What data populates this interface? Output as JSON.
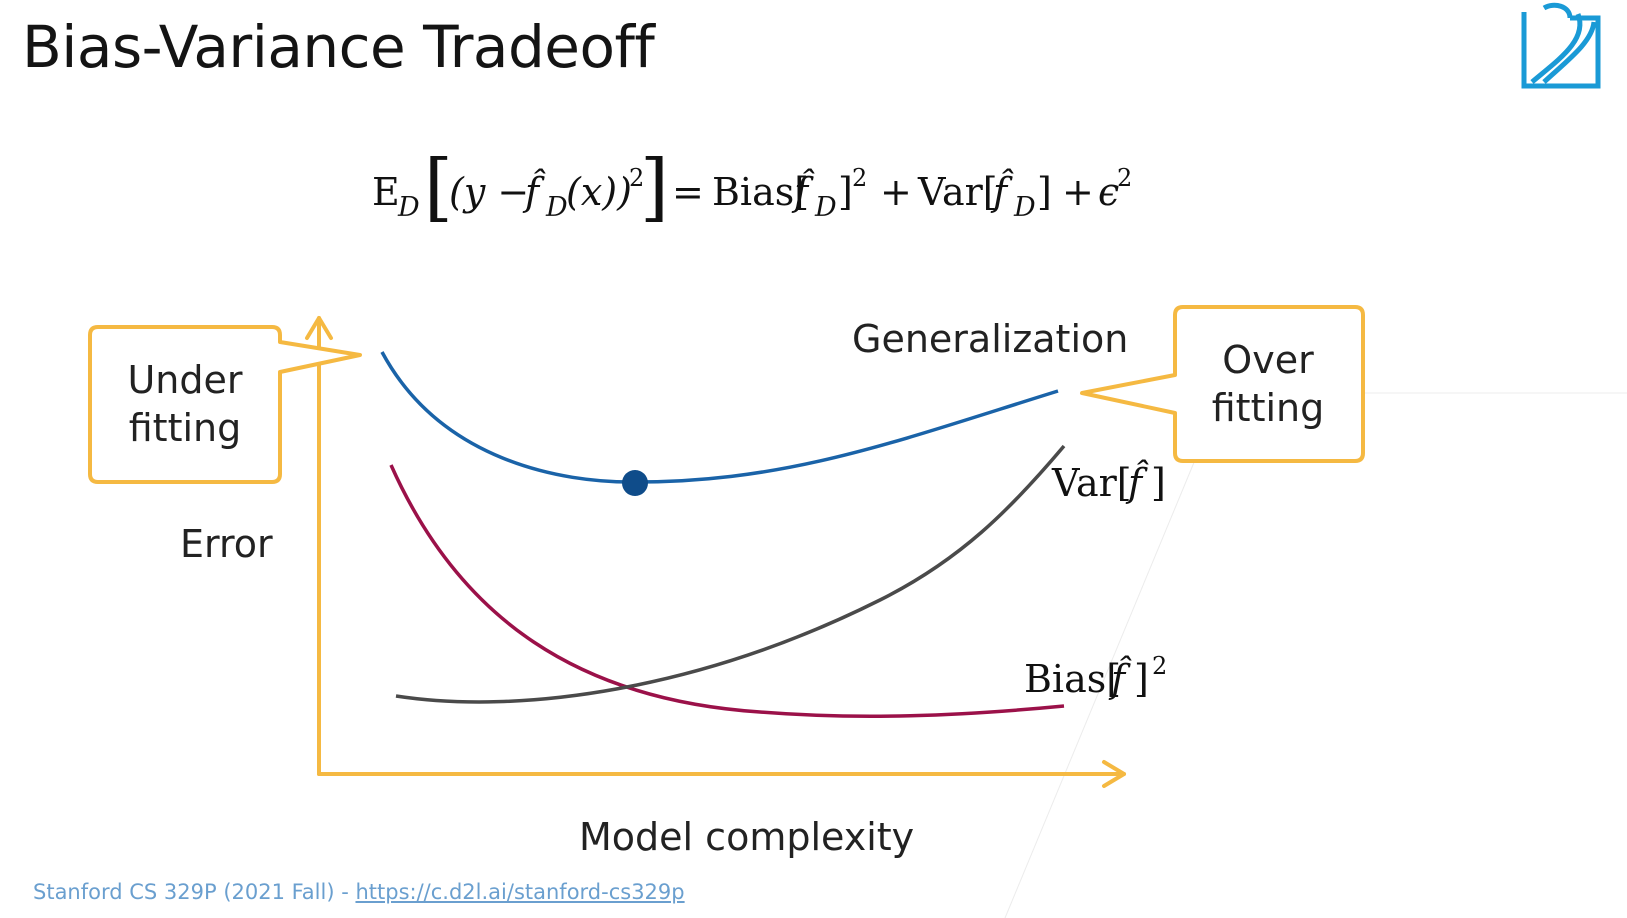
{
  "slide": {
    "title": "Bias-Variance Tradeoff",
    "logo_icon": "d2l-logo-icon"
  },
  "formula": {
    "lhs_operator": "E",
    "lhs_subscript": "D",
    "lhs_inner_prefix": "(y − ",
    "f_hat": "f̂",
    "f_subscript": "D",
    "lhs_inner_suffix": "(x))",
    "exponent": "2",
    "equals": "=",
    "bias_word": "Bias[",
    "bias_close": "]",
    "plus": "+",
    "var_word": "Var[",
    "var_close": "]",
    "noise": "ϵ"
  },
  "diagram": {
    "y_axis_label": "Error",
    "x_axis_label": "Model complexity",
    "curve_generalization_label": "Generalization",
    "curve_variance_label": "Var[",
    "curve_variance_f": "f̂",
    "curve_variance_close": "]",
    "curve_bias_label": "Bias[",
    "curve_bias_f": "f̂",
    "curve_bias_close": "]",
    "curve_bias_exponent": "2",
    "callout_under_line1": "Under",
    "callout_under_line2": "fitting",
    "callout_over_line1": "Over",
    "callout_over_line2": "fitting"
  },
  "colors": {
    "generalization": "#1a63a8",
    "variance": "#4a4a4a",
    "bias": "#9b1149",
    "axes_and_callouts": "#f5b942",
    "minimum_point": "#0f4c8a",
    "logo": "#1a9ad6",
    "footer": "#6a9fcf"
  },
  "footer": {
    "prefix": "Stanford CS 329P (2021 Fall) - ",
    "link_text": "https://c.d2l.ai/stanford-cs329p"
  }
}
